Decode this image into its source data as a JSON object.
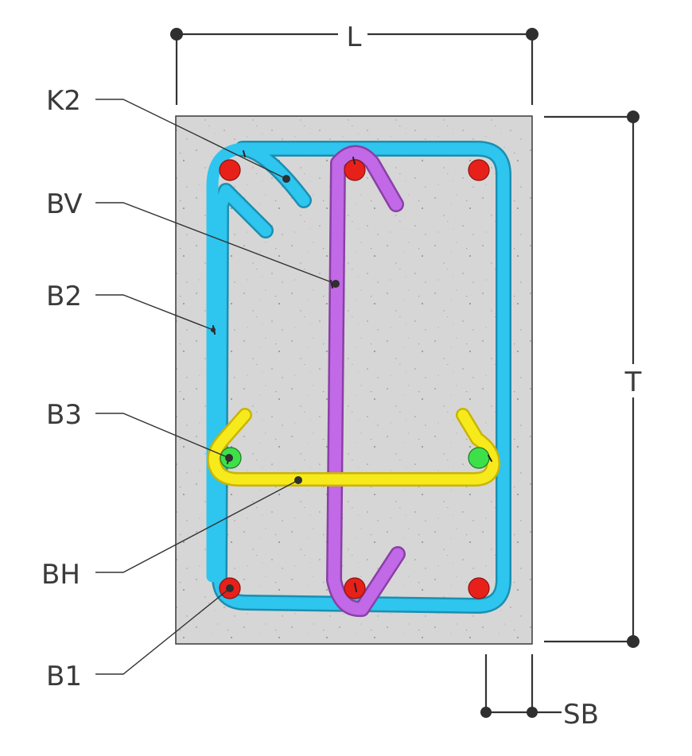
{
  "dimensions": {
    "width_label": "L",
    "height_label": "T",
    "side_cover_label": "SB"
  },
  "labels": {
    "k2": "K2",
    "bv": "BV",
    "b2": "B2",
    "b3": "B3",
    "bh": "BH",
    "b1": "B1"
  },
  "colors": {
    "concrete": "#d4d4d4",
    "stirrup_b2": "#2ec5ef",
    "hook_bv": "#c169e6",
    "link_bh": "#f7ea1c",
    "main_bars": "#e8201a",
    "mid_bars": "#3ee04a"
  }
}
